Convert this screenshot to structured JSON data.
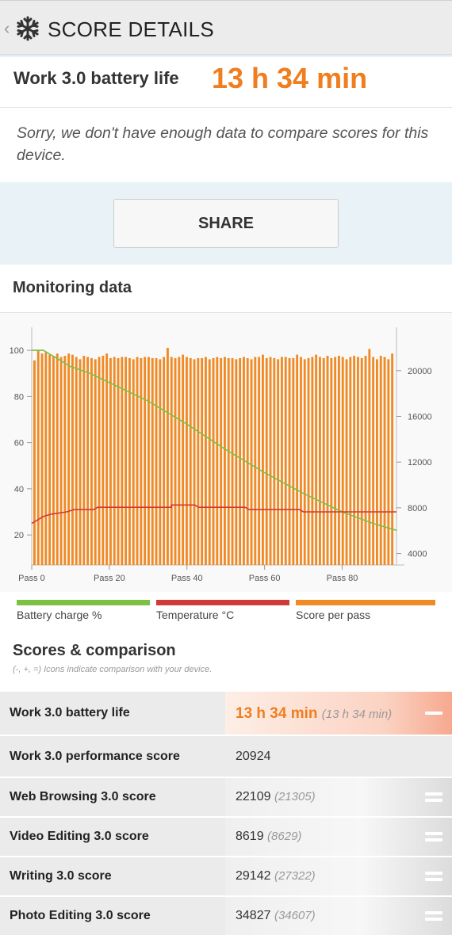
{
  "header": {
    "back_glyph": "‹",
    "title": "SCORE DETAILS",
    "logo_icon": "snowflake-icon"
  },
  "result": {
    "label": "Work 3.0 battery life",
    "value": "13 h 34 min",
    "message": "Sorry, we don't have enough data to compare scores for this device."
  },
  "share": {
    "label": "SHARE"
  },
  "monitoring": {
    "title": "Monitoring data",
    "legend": [
      {
        "label": "Battery charge %",
        "color": "#7cc142"
      },
      {
        "label": "Temperature °C",
        "color": "#d2393a"
      },
      {
        "label": "Score per pass",
        "color": "#f08a24"
      }
    ]
  },
  "chart_data": {
    "type": "bar",
    "x_ticks": [
      "Pass 0",
      "Pass 20",
      "Pass 40",
      "Pass 60",
      "Pass 80"
    ],
    "x_range": [
      0,
      94
    ],
    "left_axis": {
      "ticks": [
        20,
        40,
        60,
        80,
        100
      ],
      "range": [
        7,
        110
      ]
    },
    "right_axis": {
      "ticks": [
        4000,
        8000,
        12000,
        16000,
        20000
      ],
      "range": [
        3000,
        23800
      ]
    },
    "series": [
      {
        "name": "Score per pass",
        "axis": "right",
        "color": "#f08a24",
        "values": [
          20900,
          21800,
          21500,
          21600,
          21400,
          21300,
          21500,
          21200,
          21300,
          21500,
          21400,
          21200,
          21000,
          21300,
          21200,
          21100,
          21000,
          21200,
          21300,
          21500,
          21100,
          21200,
          21100,
          21200,
          21200,
          21100,
          21000,
          21200,
          21100,
          21200,
          21200,
          21100,
          21100,
          21000,
          21200,
          22000,
          21200,
          21100,
          21200,
          21400,
          21200,
          21100,
          21000,
          21100,
          21100,
          21200,
          21000,
          21100,
          21200,
          21100,
          21200,
          21100,
          21100,
          21000,
          21100,
          21200,
          21100,
          21000,
          21200,
          21200,
          21400,
          21100,
          21200,
          21100,
          21000,
          21200,
          21200,
          21100,
          21100,
          21400,
          21200,
          21000,
          21100,
          21200,
          21400,
          21200,
          21100,
          21300,
          21100,
          21200,
          21300,
          21200,
          21000,
          21200,
          21300,
          21200,
          21100,
          21300,
          21900,
          21200,
          21000,
          21300,
          21200,
          21000,
          21500
        ]
      },
      {
        "name": "Battery charge %",
        "axis": "left",
        "color": "#7cc142",
        "points": [
          [
            0,
            100
          ],
          [
            3,
            100
          ],
          [
            7,
            96
          ],
          [
            10,
            93
          ],
          [
            15,
            90
          ],
          [
            20,
            86
          ],
          [
            30,
            78
          ],
          [
            40,
            68
          ],
          [
            50,
            57
          ],
          [
            60,
            47
          ],
          [
            70,
            38
          ],
          [
            80,
            30
          ],
          [
            88,
            25
          ],
          [
            94,
            22
          ]
        ]
      },
      {
        "name": "Temperature °C",
        "axis": "left",
        "color": "#d2393a",
        "points": [
          [
            0,
            25
          ],
          [
            1,
            26
          ],
          [
            3,
            28
          ],
          [
            5,
            29
          ],
          [
            9,
            30
          ],
          [
            11,
            31
          ],
          [
            16,
            31
          ],
          [
            17,
            32
          ],
          [
            36,
            32
          ],
          [
            36,
            33
          ],
          [
            42,
            33
          ],
          [
            43,
            32
          ],
          [
            55,
            32
          ],
          [
            56,
            31
          ],
          [
            69,
            31
          ],
          [
            70,
            30
          ],
          [
            94,
            30
          ]
        ]
      }
    ]
  },
  "scores": {
    "title": "Scores & comparison",
    "note": "(-, +, =) Icons indicate comparison with your device.",
    "rows": [
      {
        "name": "Work 3.0 battery life",
        "value": "13 h 34 min",
        "compare": "(13 h 34 min)",
        "icon": "minus-icon"
      },
      {
        "name": "Work 3.0 performance score",
        "value": "20924",
        "compare": "",
        "icon": ""
      },
      {
        "name": "Web Browsing 3.0 score",
        "value": "22109",
        "compare": "(21305)",
        "icon": "equals-icon"
      },
      {
        "name": "Video Editing 3.0 score",
        "value": "8619",
        "compare": "(8629)",
        "icon": "equals-icon"
      },
      {
        "name": "Writing 3.0 score",
        "value": "29142",
        "compare": "(27322)",
        "icon": "equals-icon"
      },
      {
        "name": "Photo Editing 3.0 score",
        "value": "34827",
        "compare": "(34607)",
        "icon": "equals-icon"
      }
    ]
  }
}
